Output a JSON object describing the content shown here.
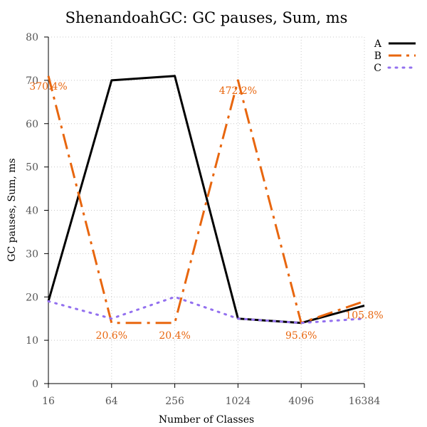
{
  "chart_data": {
    "type": "line",
    "title": "ShenandoahGC: GC pauses, Sum, ms",
    "xlabel": "Number of Classes",
    "ylabel": "GC pauses, Sum, ms",
    "x_categories": [
      "16",
      "64",
      "256",
      "1024",
      "4096",
      "16384"
    ],
    "ylim": [
      0,
      80
    ],
    "yticks": [
      0,
      10,
      20,
      30,
      40,
      50,
      60,
      70,
      80
    ],
    "grid": true,
    "legend_position": "top-right",
    "series": [
      {
        "name": "A",
        "color": "#000000",
        "style": "solid",
        "values": [
          19,
          70,
          71,
          15,
          14,
          18
        ]
      },
      {
        "name": "B",
        "color": "#e8660e",
        "style": "dashdot",
        "values": [
          71,
          14,
          14,
          70,
          14,
          19
        ]
      },
      {
        "name": "C",
        "color": "#9370ef",
        "style": "dotted",
        "values": [
          19,
          15,
          20,
          15,
          14,
          15
        ]
      }
    ],
    "annotations": [
      {
        "text": "370.4%",
        "x": "16",
        "y": 71
      },
      {
        "text": "20.6%",
        "x": "64",
        "y": 14
      },
      {
        "text": "20.4%",
        "x": "256",
        "y": 14
      },
      {
        "text": "472.2%",
        "x": "1024",
        "y": 70
      },
      {
        "text": "95.6%",
        "x": "4096",
        "y": 14
      },
      {
        "text": "105.8%",
        "x": "16384",
        "y": 19
      }
    ]
  }
}
